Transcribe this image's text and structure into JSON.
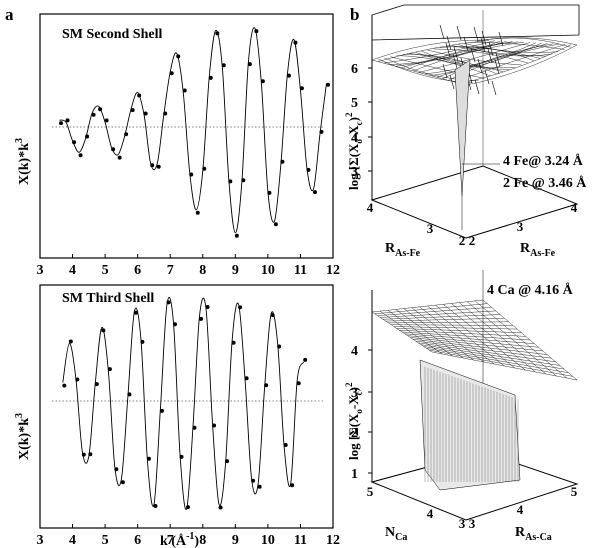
{
  "panel_a": {
    "label": "a",
    "top": {
      "title": "SM Second Shell",
      "ylabel_main": "X(k)*k",
      "ylabel_sup": "3",
      "xticks": [
        "3",
        "4",
        "5",
        "6",
        "7",
        "8",
        "9",
        "10",
        "11",
        "12"
      ]
    },
    "bottom": {
      "title": "SM Third Shell",
      "ylabel_main": "X(k)*k",
      "ylabel_sup": "3",
      "xticks": [
        "3",
        "4",
        "5",
        "6",
        "7",
        "8",
        "9",
        "10",
        "11",
        "12"
      ],
      "xlabel_main": "k (Å",
      "xlabel_sup": "-1",
      "xlabel_end": ")"
    }
  },
  "panel_b": {
    "label": "b",
    "top": {
      "zticks": [
        "6",
        "5",
        "4",
        "3"
      ],
      "zlabel_main": "log [Σ(X",
      "zlabel_sub1": "o",
      "zlabel_mid": "-X",
      "zlabel_sub2": "c",
      "zlabel_end": ")",
      "zlabel_sup": "2",
      "annot1": "4  Fe@ 3.24 Å",
      "annot2": "2 Fe @ 3.46 Å",
      "left_axis_ticks": [
        "4",
        "3",
        "2"
      ],
      "right_axis_ticks": [
        "2",
        "3",
        "4"
      ],
      "left_axis_label_main": "R",
      "left_axis_label_sub": "As-Fe",
      "right_axis_label_main": "R",
      "right_axis_label_sub": "As-Fe"
    },
    "bottom": {
      "zticks": [
        "4",
        "3",
        "2",
        "1"
      ],
      "zlabel_main": "log [Σ(X",
      "zlabel_sub1": "o",
      "zlabel_mid": "-X",
      "zlabel_sub2": "c",
      "zlabel_end": ")",
      "zlabel_sup": "2",
      "annot": "4 Ca @ 4.16 Å",
      "left_axis_ticks": [
        "5",
        "4",
        "3"
      ],
      "right_axis_ticks": [
        "3",
        "4",
        "5"
      ],
      "left_axis_label_main": "N",
      "left_axis_label_sub": "Ca",
      "right_axis_label_main": "R",
      "right_axis_label_sub": "As-Ca"
    }
  },
  "chart_data": [
    {
      "type": "line",
      "title": "SM Second Shell",
      "xlim": [
        3,
        12
      ],
      "ylabel": "X(k)*k3",
      "series": [
        {
          "k": [
            3.6,
            3.8,
            4.0,
            4.2,
            4.4,
            4.6,
            4.8,
            5.0,
            5.2,
            5.4,
            5.6,
            5.8,
            6.0,
            6.2,
            6.4,
            6.6,
            6.8,
            7.0,
            7.2,
            7.4,
            7.6,
            7.8,
            8.0,
            8.2,
            8.4,
            8.6,
            8.8,
            9.0,
            9.2,
            9.4,
            9.6,
            9.8,
            10.0,
            10.2,
            10.4,
            10.6,
            10.8,
            11.0,
            11.2,
            11.4,
            11.6,
            11.8
          ],
          "values": [
            0.3,
            0.2,
            -0.6,
            -1.1,
            -0.5,
            0.6,
            0.9,
            0.2,
            -0.9,
            -1.2,
            -0.4,
            0.8,
            1.5,
            0.5,
            -1.6,
            -1.6,
            0.5,
            2.4,
            3.2,
            1.5,
            -2.0,
            -3.6,
            -1.9,
            2.2,
            4.2,
            2.6,
            -2.3,
            -4.6,
            -2.4,
            2.8,
            4.3,
            1.9,
            -2.8,
            -4.1,
            -1.6,
            2.3,
            3.8,
            1.6,
            -1.8,
            -2.7,
            -0.3,
            1.9
          ]
        }
      ]
    },
    {
      "type": "line",
      "title": "SM Third Shell",
      "xlim": [
        3,
        12
      ],
      "xlabel": "k (Å-1)",
      "ylabel": "X(k)*k3",
      "series": [
        {
          "k": [
            3.7,
            3.9,
            4.1,
            4.3,
            4.5,
            4.7,
            4.9,
            5.1,
            5.3,
            5.5,
            5.7,
            5.9,
            6.1,
            6.3,
            6.5,
            6.7,
            6.9,
            7.1,
            7.3,
            7.5,
            7.7,
            7.9,
            8.1,
            8.3,
            8.5,
            8.7,
            8.9,
            9.1,
            9.3,
            9.5,
            9.7,
            9.9,
            10.1,
            10.3,
            10.5,
            10.7,
            10.9,
            11.1
          ],
          "values": [
            0.8,
            2.5,
            1.0,
            -2.2,
            -2.4,
            0.8,
            3.2,
            1.3,
            -2.9,
            -3.4,
            0.2,
            3.9,
            2.7,
            -2.6,
            -4.5,
            -0.3,
            4.2,
            3.4,
            -2.3,
            -4.7,
            -1.1,
            3.7,
            4.0,
            -1.0,
            -4.5,
            -2.7,
            2.6,
            4.2,
            0.9,
            -3.4,
            -3.6,
            0.6,
            3.8,
            2.5,
            -2.0,
            -3.6,
            0.9,
            1.7
          ]
        }
      ]
    }
  ]
}
